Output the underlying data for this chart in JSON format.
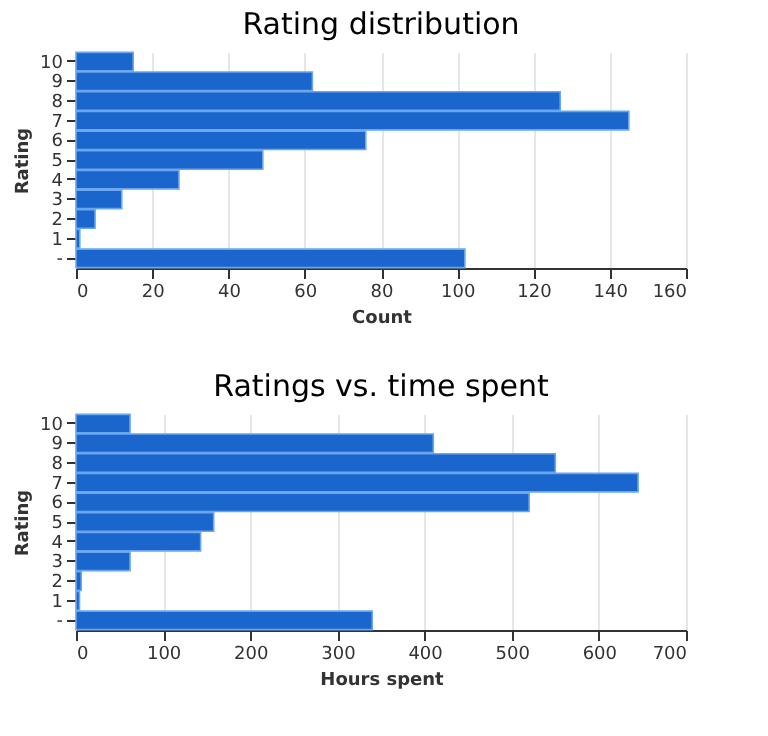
{
  "chart_data": [
    {
      "type": "bar",
      "orientation": "horizontal",
      "title": "Rating distribution",
      "xlabel": "Count",
      "ylabel": "Rating",
      "categories": [
        "10",
        "9",
        "8",
        "7",
        "6",
        "5",
        "4",
        "3",
        "2",
        "1",
        "-"
      ],
      "values": [
        15,
        62,
        127,
        145,
        76,
        49,
        27,
        12,
        5,
        1,
        102
      ],
      "color": "#1a66cc",
      "xlim": [
        0,
        160
      ],
      "xticks": [
        0,
        20,
        40,
        60,
        80,
        100,
        120,
        140,
        160
      ],
      "grid": "x"
    },
    {
      "type": "bar",
      "orientation": "horizontal",
      "title": "Ratings vs. time spent",
      "xlabel": "Hours spent",
      "ylabel": "Rating",
      "categories": [
        "10",
        "9",
        "8",
        "7",
        "6",
        "5",
        "4",
        "3",
        "2",
        "1",
        "-"
      ],
      "values": [
        62,
        410,
        550,
        645,
        520,
        158,
        143,
        62,
        6,
        4,
        340
      ],
      "color": "#1a66cc",
      "xlim": [
        0,
        700
      ],
      "xticks": [
        0,
        100,
        200,
        300,
        400,
        500,
        600,
        700
      ],
      "grid": "x"
    }
  ]
}
